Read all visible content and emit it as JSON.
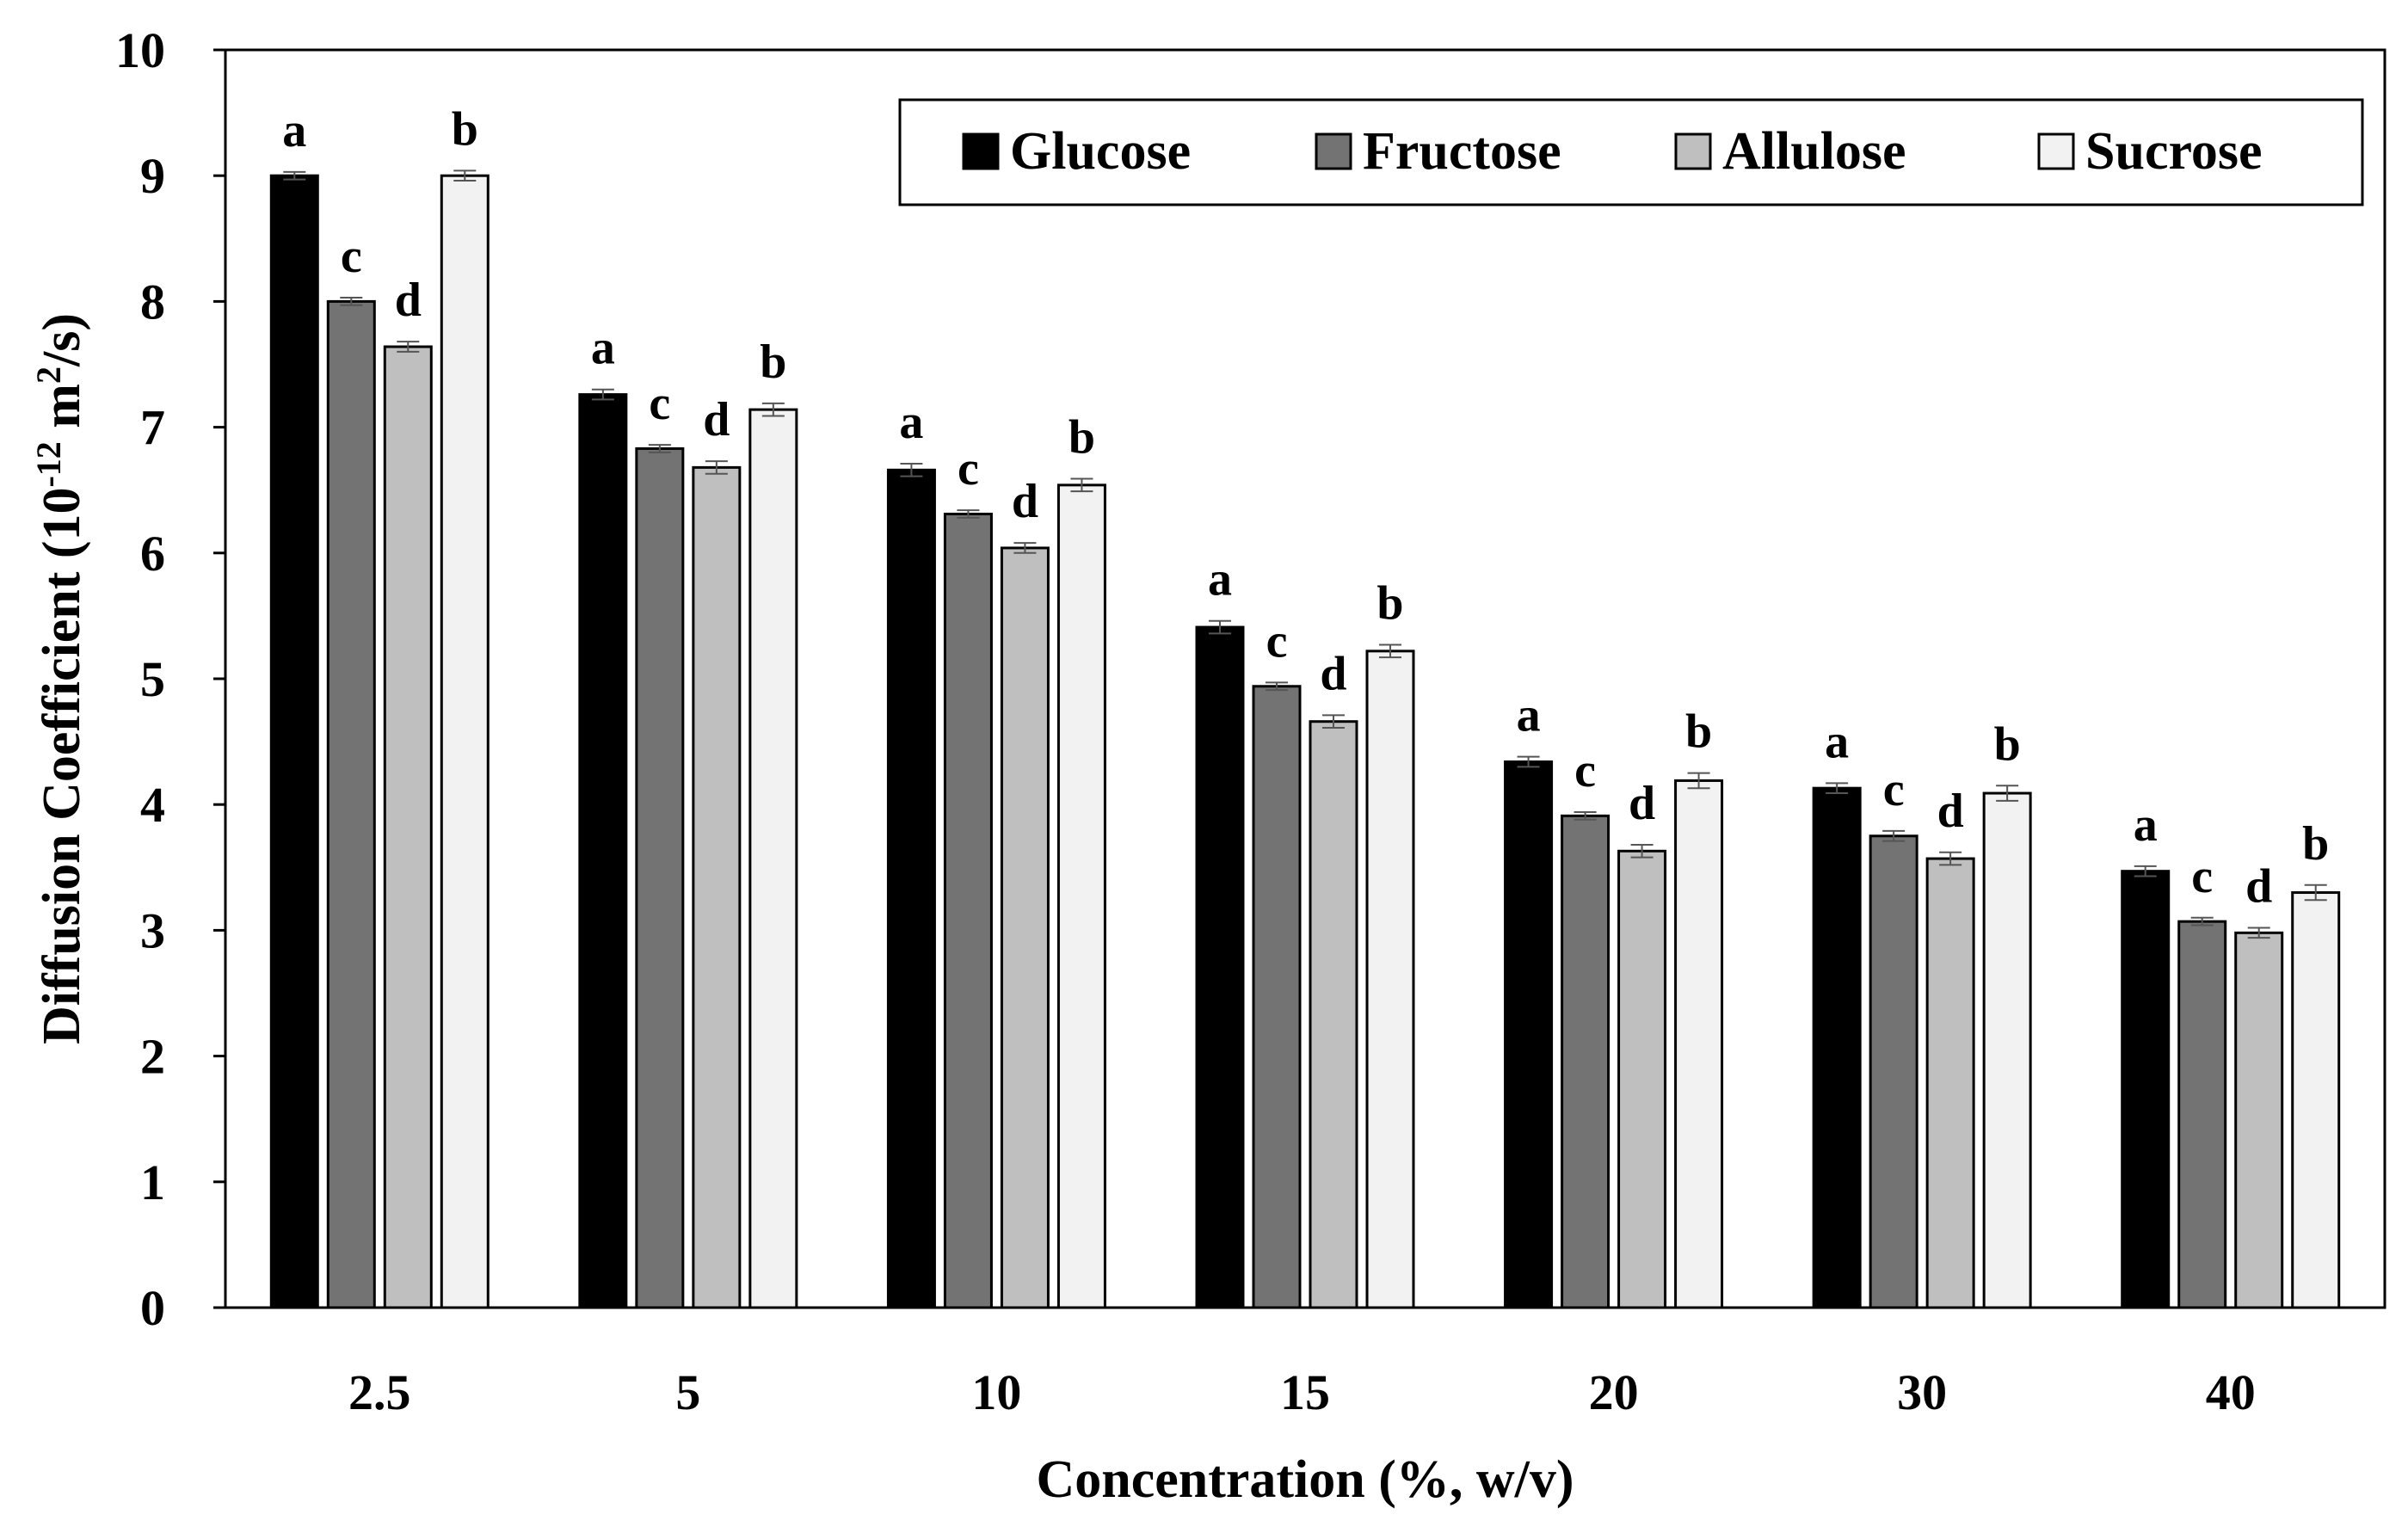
{
  "chart_data": {
    "type": "bar",
    "title": "",
    "xlabel": "Concentration (%, w/v)",
    "ylabel": "Diffusion Coefficient (10",
    "ylabel_exponent": "-12",
    "ylabel_units": " m",
    "ylabel_units_exponent": "2",
    "ylabel_suffix": "/s)",
    "ylim": [
      0,
      10
    ],
    "yticks": [
      "0",
      "1",
      "2",
      "3",
      "4",
      "5",
      "6",
      "7",
      "8",
      "9",
      "10"
    ],
    "categories": [
      "2.5",
      "5",
      "10",
      "15",
      "20",
      "30",
      "40"
    ],
    "grid": false,
    "legend_position": "top-right",
    "series": [
      {
        "name": "Glucose",
        "color": "#000000",
        "values": [
          9.0,
          7.26,
          6.66,
          5.41,
          4.34,
          4.13,
          3.47
        ],
        "errors": [
          0.03,
          0.04,
          0.05,
          0.05,
          0.04,
          0.04,
          0.04
        ],
        "letters": [
          "a",
          "a",
          "a",
          "a",
          "a",
          "a",
          "a"
        ]
      },
      {
        "name": "Fructose",
        "color": "#737373",
        "values": [
          8.0,
          6.83,
          6.31,
          4.94,
          3.91,
          3.75,
          3.07
        ],
        "errors": [
          0.03,
          0.03,
          0.03,
          0.03,
          0.03,
          0.04,
          0.03
        ],
        "letters": [
          "c",
          "c",
          "c",
          "c",
          "c",
          "c",
          "c"
        ]
      },
      {
        "name": "Allulose",
        "color": "#bfbfbf",
        "values": [
          7.64,
          6.68,
          6.04,
          4.66,
          3.63,
          3.57,
          2.98
        ],
        "errors": [
          0.04,
          0.05,
          0.04,
          0.05,
          0.05,
          0.05,
          0.04
        ],
        "letters": [
          "d",
          "d",
          "d",
          "d",
          "d",
          "d",
          "d"
        ]
      },
      {
        "name": "Sucrose",
        "color": "#f2f2f2",
        "values": [
          9.0,
          7.14,
          6.54,
          5.22,
          4.19,
          4.09,
          3.3
        ],
        "errors": [
          0.04,
          0.05,
          0.05,
          0.05,
          0.06,
          0.06,
          0.06
        ],
        "letters": [
          "b",
          "b",
          "b",
          "b",
          "b",
          "b",
          "b"
        ]
      }
    ]
  }
}
